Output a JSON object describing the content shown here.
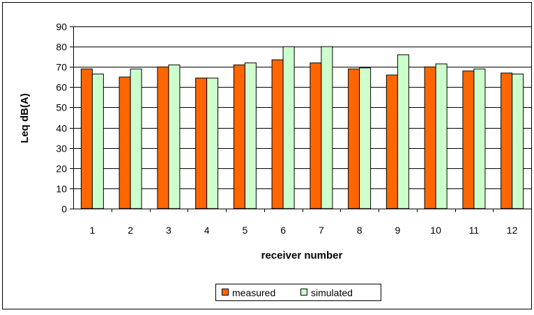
{
  "chart_data": {
    "type": "bar",
    "title": "",
    "xlabel": "receiver number",
    "ylabel": "Leq dB(A)",
    "categories": [
      "1",
      "2",
      "3",
      "4",
      "5",
      "6",
      "7",
      "8",
      "9",
      "10",
      "11",
      "12"
    ],
    "series": [
      {
        "name": "measured",
        "color": "#ff6600",
        "values": [
          69,
          65,
          70,
          64.5,
          71,
          73.5,
          72,
          69,
          66,
          70,
          68,
          67
        ]
      },
      {
        "name": "simulated",
        "color": "#ccffcc",
        "values": [
          66.5,
          69,
          71,
          64.5,
          72,
          80,
          80,
          69.5,
          76,
          71.5,
          69,
          66.5
        ]
      }
    ],
    "ylim": [
      0,
      90
    ],
    "yticks": [
      0,
      10,
      20,
      30,
      40,
      50,
      60,
      70,
      80,
      90
    ],
    "grid": true,
    "legend_position": "bottom"
  }
}
